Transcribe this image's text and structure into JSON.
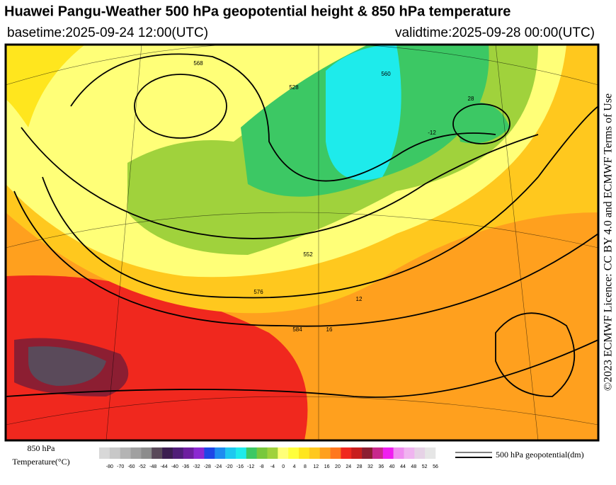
{
  "header": {
    "title": "Huawei Pangu-Weather 500 hPa geopotential height & 850 hPa temperature",
    "basetime": "basetime:2025-09-24 12:00(UTC)",
    "validtime": "validtime:2025-09-28 00:00(UTC)"
  },
  "side_text": "©2023 ECMWF Licence: CC BY 4.0 and ECMWF Terms of Use",
  "map_labels": [
    "568",
    "576",
    "584",
    "528",
    "552",
    "560",
    "12",
    "-12",
    "28",
    "16"
  ],
  "legend": {
    "temperature_label": [
      "850 hPa",
      "Temperature(°C)"
    ],
    "colorbar_ticks": [
      -80,
      -70,
      -60,
      -52,
      -48,
      -44,
      -40,
      -36,
      -32,
      -28,
      -24,
      -20,
      -16,
      -12,
      -8,
      -4,
      0,
      4,
      8,
      12,
      16,
      20,
      24,
      28,
      32,
      36,
      40,
      44,
      48,
      52,
      56
    ],
    "colorbar_colors": [
      "#d8d8d8",
      "#c8c8c8",
      "#b4b4b4",
      "#a0a0a0",
      "#8c8c8c",
      "#5a4a5a",
      "#3c1e50",
      "#501e78",
      "#6e1ea0",
      "#8c28d2",
      "#1e46e6",
      "#1e8cf0",
      "#1ec8f0",
      "#1eebeb",
      "#3cc864",
      "#78c83c",
      "#a0d23c",
      "#ffff78",
      "#ffff3c",
      "#ffe61e",
      "#ffc81e",
      "#ffa01e",
      "#ff781e",
      "#f0281e",
      "#c81e1e",
      "#8c1e32",
      "#c8288c",
      "#f01ef0",
      "#f08cf0",
      "#f0b4f0",
      "#e6d2e6",
      "#e6e6e6"
    ],
    "contour_label": "500 hPa geopotential(dm)"
  }
}
